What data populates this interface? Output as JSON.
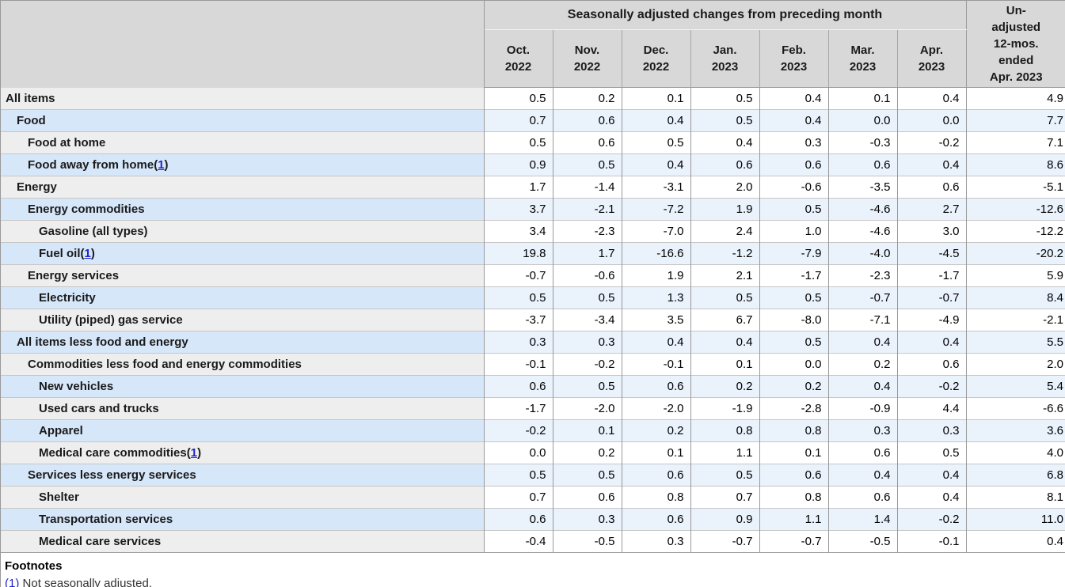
{
  "chart_data": {
    "type": "table",
    "title": "Seasonally adjusted changes from preceding month",
    "columns": [
      {
        "line1": "Oct.",
        "line2": "2022"
      },
      {
        "line1": "Nov.",
        "line2": "2022"
      },
      {
        "line1": "Dec.",
        "line2": "2022"
      },
      {
        "line1": "Jan.",
        "line2": "2023"
      },
      {
        "line1": "Feb.",
        "line2": "2023"
      },
      {
        "line1": "Mar.",
        "line2": "2023"
      },
      {
        "line1": "Apr.",
        "line2": "2023"
      }
    ],
    "last_column_header_lines": [
      "Un-",
      "adjusted",
      "12-mos.",
      "ended",
      "Apr. 2023"
    ],
    "rows": [
      {
        "label": "All items",
        "indent": 0,
        "footnote_ref": "",
        "values": [
          "0.5",
          "0.2",
          "0.1",
          "0.5",
          "0.4",
          "0.1",
          "0.4",
          "4.9"
        ]
      },
      {
        "label": "Food",
        "indent": 1,
        "footnote_ref": "",
        "values": [
          "0.7",
          "0.6",
          "0.4",
          "0.5",
          "0.4",
          "0.0",
          "0.0",
          "7.7"
        ]
      },
      {
        "label": "Food at home",
        "indent": 2,
        "footnote_ref": "",
        "values": [
          "0.5",
          "0.6",
          "0.5",
          "0.4",
          "0.3",
          "-0.3",
          "-0.2",
          "7.1"
        ]
      },
      {
        "label": "Food away from home",
        "indent": 2,
        "footnote_ref": "1",
        "values": [
          "0.9",
          "0.5",
          "0.4",
          "0.6",
          "0.6",
          "0.6",
          "0.4",
          "8.6"
        ]
      },
      {
        "label": "Energy",
        "indent": 1,
        "footnote_ref": "",
        "values": [
          "1.7",
          "-1.4",
          "-3.1",
          "2.0",
          "-0.6",
          "-3.5",
          "0.6",
          "-5.1"
        ]
      },
      {
        "label": "Energy commodities",
        "indent": 2,
        "footnote_ref": "",
        "values": [
          "3.7",
          "-2.1",
          "-7.2",
          "1.9",
          "0.5",
          "-4.6",
          "2.7",
          "-12.6"
        ]
      },
      {
        "label": "Gasoline (all types)",
        "indent": 3,
        "footnote_ref": "",
        "values": [
          "3.4",
          "-2.3",
          "-7.0",
          "2.4",
          "1.0",
          "-4.6",
          "3.0",
          "-12.2"
        ]
      },
      {
        "label": "Fuel oil",
        "indent": 3,
        "footnote_ref": "1",
        "values": [
          "19.8",
          "1.7",
          "-16.6",
          "-1.2",
          "-7.9",
          "-4.0",
          "-4.5",
          "-20.2"
        ]
      },
      {
        "label": "Energy services",
        "indent": 2,
        "footnote_ref": "",
        "values": [
          "-0.7",
          "-0.6",
          "1.9",
          "2.1",
          "-1.7",
          "-2.3",
          "-1.7",
          "5.9"
        ]
      },
      {
        "label": "Electricity",
        "indent": 3,
        "footnote_ref": "",
        "values": [
          "0.5",
          "0.5",
          "1.3",
          "0.5",
          "0.5",
          "-0.7",
          "-0.7",
          "8.4"
        ]
      },
      {
        "label": "Utility (piped) gas service",
        "indent": 3,
        "footnote_ref": "",
        "values": [
          "-3.7",
          "-3.4",
          "3.5",
          "6.7",
          "-8.0",
          "-7.1",
          "-4.9",
          "-2.1"
        ]
      },
      {
        "label": "All items less food and energy",
        "indent": 1,
        "footnote_ref": "",
        "values": [
          "0.3",
          "0.3",
          "0.4",
          "0.4",
          "0.5",
          "0.4",
          "0.4",
          "5.5"
        ]
      },
      {
        "label": "Commodities less food and energy commodities",
        "indent": 2,
        "footnote_ref": "",
        "values": [
          "-0.1",
          "-0.2",
          "-0.1",
          "0.1",
          "0.0",
          "0.2",
          "0.6",
          "2.0"
        ]
      },
      {
        "label": "New vehicles",
        "indent": 3,
        "footnote_ref": "",
        "values": [
          "0.6",
          "0.5",
          "0.6",
          "0.2",
          "0.2",
          "0.4",
          "-0.2",
          "5.4"
        ]
      },
      {
        "label": "Used cars and trucks",
        "indent": 3,
        "footnote_ref": "",
        "values": [
          "-1.7",
          "-2.0",
          "-2.0",
          "-1.9",
          "-2.8",
          "-0.9",
          "4.4",
          "-6.6"
        ]
      },
      {
        "label": "Apparel",
        "indent": 3,
        "footnote_ref": "",
        "values": [
          "-0.2",
          "0.1",
          "0.2",
          "0.8",
          "0.8",
          "0.3",
          "0.3",
          "3.6"
        ]
      },
      {
        "label": "Medical care commodities",
        "indent": 3,
        "footnote_ref": "1",
        "values": [
          "0.0",
          "0.2",
          "0.1",
          "1.1",
          "0.1",
          "0.6",
          "0.5",
          "4.0"
        ]
      },
      {
        "label": "Services less energy services",
        "indent": 2,
        "footnote_ref": "",
        "values": [
          "0.5",
          "0.5",
          "0.6",
          "0.5",
          "0.6",
          "0.4",
          "0.4",
          "6.8"
        ]
      },
      {
        "label": "Shelter",
        "indent": 3,
        "footnote_ref": "",
        "values": [
          "0.7",
          "0.6",
          "0.8",
          "0.7",
          "0.8",
          "0.6",
          "0.4",
          "8.1"
        ]
      },
      {
        "label": "Transportation services",
        "indent": 3,
        "footnote_ref": "",
        "values": [
          "0.6",
          "0.3",
          "0.6",
          "0.9",
          "1.1",
          "1.4",
          "-0.2",
          "11.0"
        ]
      },
      {
        "label": "Medical care services",
        "indent": 3,
        "footnote_ref": "",
        "values": [
          "-0.4",
          "-0.5",
          "0.3",
          "-0.7",
          "-0.7",
          "-0.5",
          "-0.1",
          "0.4"
        ]
      }
    ]
  },
  "footnotes": {
    "heading": "Footnotes",
    "items": [
      {
        "marker": "(1)",
        "text": "Not seasonally adjusted."
      }
    ]
  },
  "colors": {
    "header_bg": "#d8d8d8",
    "label_row_gray": "#eeeeee",
    "label_row_blue": "#d6e7fa",
    "data_row_blue": "#eaf2fc",
    "border_dark": "#999999",
    "border_light": "#c6c6c6",
    "link": "#2222cc"
  }
}
